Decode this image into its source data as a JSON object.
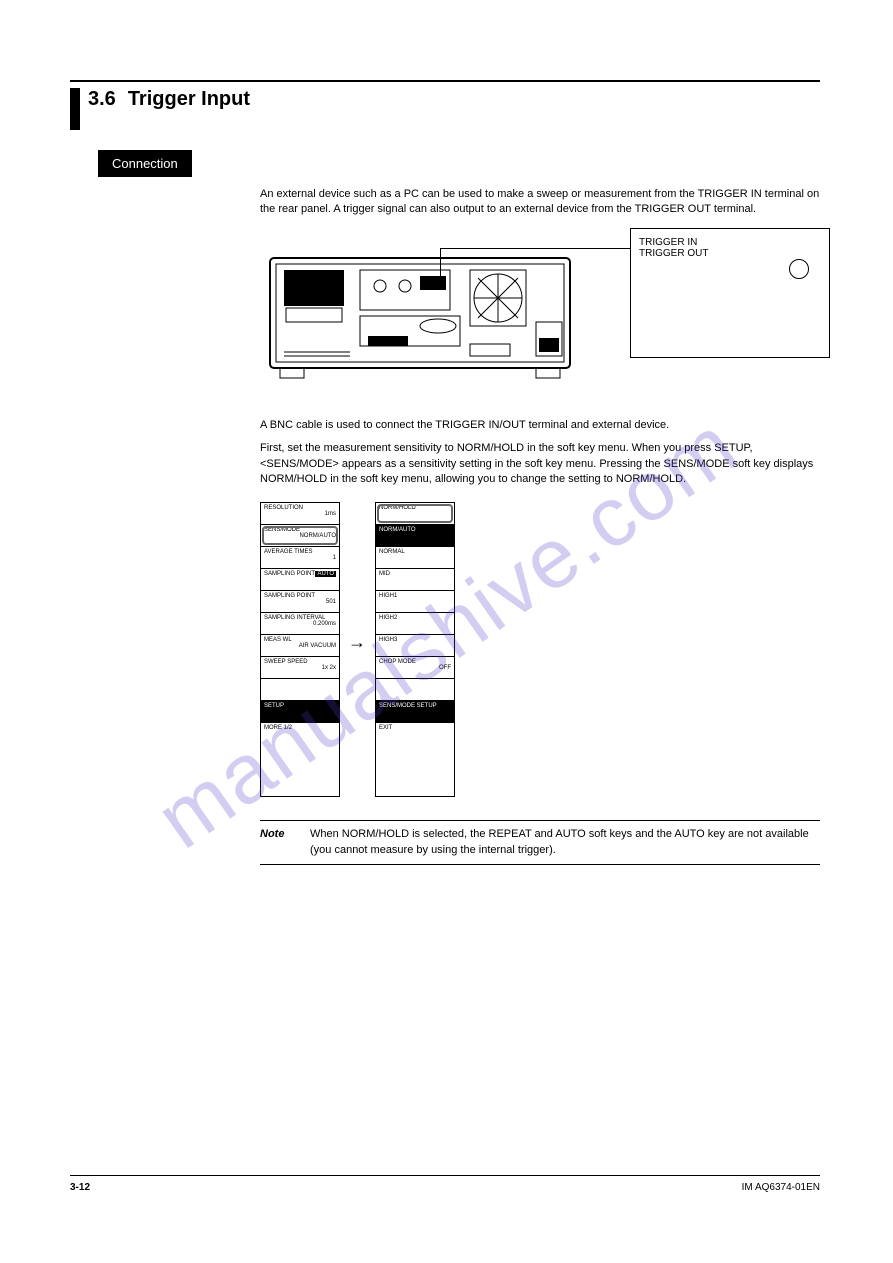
{
  "chapter": {
    "number": "3.6",
    "title": "Trigger Input"
  },
  "connection": {
    "heading": "Connection",
    "text": "An external device such as a PC can be used to make a sweep or measurement from the TRIGGER IN terminal on the rear panel. A trigger signal can also output to an external device from the TRIGGER OUT terminal."
  },
  "callout": {
    "line1": "TRIGGER IN",
    "line2": "TRIGGER OUT"
  },
  "second": {
    "p1": "A BNC cable is used to connect the TRIGGER IN/OUT terminal and external device.",
    "p2": "First, set the measurement sensitivity to NORM/HOLD in the soft key menu. When you press SETUP, <SENS/MODE> appears as a sensitivity setting in the soft key menu. Pressing the SENS/MODE soft key displays NORM/HOLD in the soft key menu, allowing you to change the setting to NORM/HOLD."
  },
  "menus": {
    "left": [
      {
        "label": "RESOLUTION",
        "val": "1ms"
      },
      {
        "label": "SENS/MODE",
        "val": "NORM/AUTO",
        "outlined": true
      },
      {
        "label": "AVERAGE TIMES",
        "val": "1"
      },
      {
        "label": "SAMPLING POINT",
        "val": "AUTO",
        "inv": true
      },
      {
        "label": "SAMPLING POINT",
        "val": "501"
      },
      {
        "label": "SAMPLING INTERVAL",
        "val": "0.200ms"
      },
      {
        "label": "MEAS WL",
        "val": "AIR VACUUM"
      },
      {
        "label": "SWEEP SPEED",
        "val": "1x 2x"
      },
      {
        "label": "",
        "val": ""
      },
      {
        "label": "SETUP",
        "dark": true
      },
      {
        "label": "MORE 1/2",
        "val": ""
      }
    ],
    "right": [
      {
        "label": "NORM/HOLD",
        "outlined": true
      },
      {
        "label": "NORM/AUTO",
        "dark": true
      },
      {
        "label": "NORMAL"
      },
      {
        "label": "MID"
      },
      {
        "label": "HIGH1"
      },
      {
        "label": "HIGH2"
      },
      {
        "label": "HIGH3"
      },
      {
        "label": "CHOP MODE",
        "val": "OFF"
      },
      {
        "label": "",
        "val": ""
      },
      {
        "label": "SENS/MODE SETUP",
        "dark": true
      },
      {
        "label": "EXIT"
      }
    ]
  },
  "note": {
    "label": "Note",
    "text": "When NORM/HOLD is selected, the REPEAT and AUTO soft keys and the AUTO key are not available (you cannot measure by using the internal trigger)."
  },
  "footer": {
    "page": "3-12",
    "manual": "IM AQ6374-01EN"
  },
  "watermark": "manualshive.com"
}
